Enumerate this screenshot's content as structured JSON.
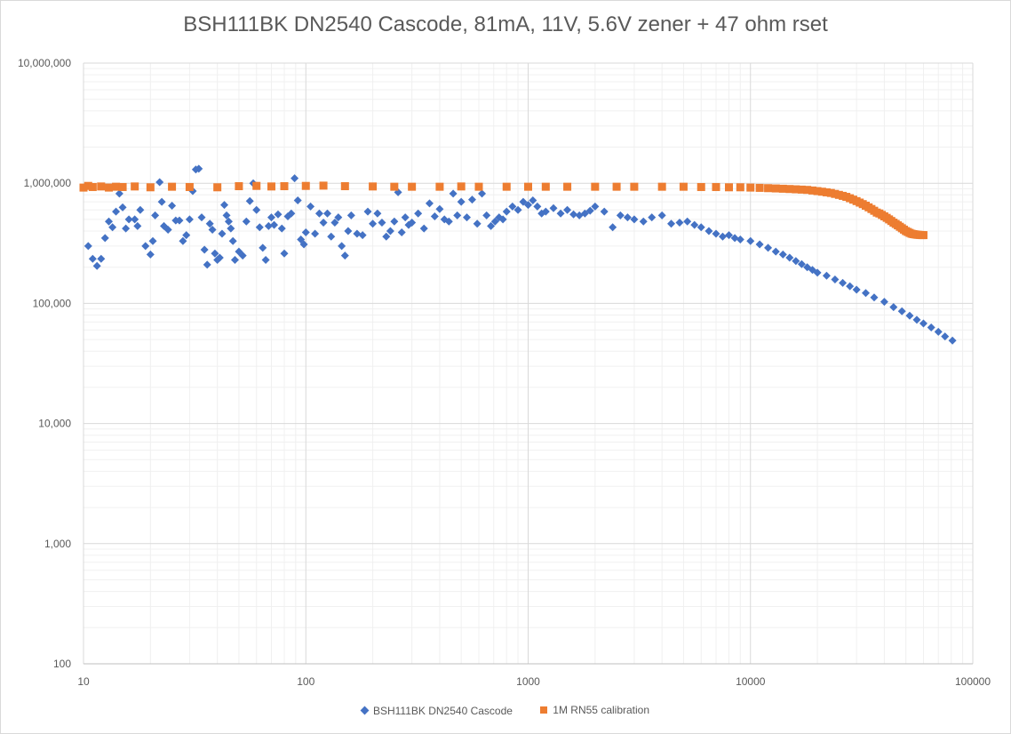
{
  "chart_data": {
    "type": "scatter",
    "title": "BSH111BK DN2540 Cascode, 81mA, 11V, 5.6V zener + 47 ohm rset",
    "xlabel": "",
    "ylabel": "",
    "x_scale": "log",
    "y_scale": "log",
    "xlim": [
      10,
      100000
    ],
    "ylim": [
      100,
      10000000
    ],
    "x_ticks": [
      10,
      100,
      1000,
      10000,
      100000
    ],
    "x_tick_labels": [
      "10",
      "100",
      "1000",
      "10000",
      "100000"
    ],
    "y_ticks": [
      100,
      1000,
      10000,
      100000,
      1000000,
      10000000
    ],
    "y_tick_labels": [
      "100",
      "1,000",
      "10,000",
      "100,000",
      "1,000,000",
      "10,000,000"
    ],
    "grid": true,
    "minor_grid": true,
    "legend_position": "bottom",
    "series": [
      {
        "name": "BSH111BK DN2540 Cascode",
        "color": "#4472c4",
        "marker": "diamond",
        "x": [
          10.5,
          11,
          11.5,
          12,
          12.5,
          13,
          13.5,
          14,
          14.5,
          15,
          15.5,
          16,
          17,
          17.5,
          18,
          19,
          20,
          20.5,
          21,
          22,
          22.5,
          23,
          24,
          25,
          26,
          27,
          28,
          29,
          30,
          31,
          32,
          33,
          34,
          35,
          36,
          37,
          38,
          39,
          40,
          41,
          42,
          43,
          44,
          45,
          46,
          47,
          48,
          50,
          52,
          54,
          56,
          58,
          60,
          62,
          64,
          66,
          68,
          70,
          72,
          75,
          78,
          80,
          83,
          86,
          89,
          92,
          95,
          98,
          100,
          105,
          110,
          115,
          120,
          125,
          130,
          135,
          140,
          145,
          150,
          155,
          160,
          170,
          180,
          190,
          200,
          210,
          220,
          230,
          240,
          250,
          260,
          270,
          280,
          290,
          300,
          320,
          340,
          360,
          380,
          400,
          420,
          440,
          460,
          480,
          500,
          530,
          560,
          590,
          620,
          650,
          680,
          710,
          740,
          770,
          800,
          850,
          900,
          950,
          1000,
          1050,
          1100,
          1150,
          1200,
          1300,
          1400,
          1500,
          1600,
          1700,
          1800,
          1900,
          2000,
          2200,
          2400,
          2600,
          2800,
          3000,
          3300,
          3600,
          4000,
          4400,
          4800,
          5200,
          5600,
          6000,
          6500,
          7000,
          7500,
          8000,
          8500,
          9000,
          10000,
          11000,
          12000,
          13000,
          14000,
          15000,
          16000,
          17000,
          18000,
          19000,
          20000,
          22000,
          24000,
          26000,
          28000,
          30000,
          33000,
          36000,
          40000,
          44000,
          48000,
          52000,
          56000,
          60000,
          65000,
          70000,
          75000,
          81000
        ],
        "y": [
          300000,
          235000,
          205000,
          235000,
          350000,
          480000,
          430000,
          580000,
          820000,
          630000,
          420000,
          500000,
          500000,
          440000,
          600000,
          300000,
          255000,
          330000,
          540000,
          1020000,
          700000,
          440000,
          410000,
          650000,
          490000,
          490000,
          330000,
          370000,
          500000,
          860000,
          1300000,
          1320000,
          520000,
          280000,
          210000,
          460000,
          410000,
          260000,
          230000,
          240000,
          380000,
          660000,
          540000,
          480000,
          420000,
          330000,
          230000,
          270000,
          250000,
          480000,
          710000,
          1000000,
          600000,
          430000,
          290000,
          230000,
          440000,
          520000,
          450000,
          550000,
          420000,
          260000,
          530000,
          560000,
          1100000,
          720000,
          340000,
          310000,
          390000,
          640000,
          380000,
          560000,
          470000,
          560000,
          360000,
          470000,
          520000,
          300000,
          250000,
          400000,
          540000,
          380000,
          370000,
          580000,
          460000,
          560000,
          470000,
          360000,
          400000,
          480000,
          840000,
          390000,
          520000,
          450000,
          470000,
          560000,
          420000,
          680000,
          530000,
          610000,
          500000,
          480000,
          820000,
          540000,
          700000,
          520000,
          730000,
          460000,
          820000,
          540000,
          440000,
          480000,
          520000,
          500000,
          580000,
          640000,
          600000,
          700000,
          660000,
          720000,
          640000,
          560000,
          580000,
          620000,
          560000,
          600000,
          550000,
          540000,
          560000,
          590000,
          640000,
          580000,
          430000,
          540000,
          520000,
          500000,
          480000,
          520000,
          540000,
          460000,
          470000,
          480000,
          450000,
          430000,
          400000,
          380000,
          360000,
          370000,
          350000,
          340000,
          330000,
          310000,
          290000,
          270000,
          255000,
          240000,
          225000,
          212000,
          200000,
          190000,
          180000,
          170000,
          158000,
          148000,
          139000,
          130000,
          122000,
          112000,
          103000,
          93000,
          86000,
          79000,
          73000,
          68000,
          63000,
          58000,
          53000,
          49000
        ]
      },
      {
        "name": "1M RN55 calibration",
        "color": "#ed7d31",
        "marker": "square",
        "x": [
          10,
          10.5,
          11,
          12,
          13,
          14,
          15,
          17,
          20,
          25,
          30,
          40,
          50,
          60,
          70,
          80,
          100,
          120,
          150,
          200,
          250,
          300,
          400,
          500,
          600,
          800,
          1000,
          1200,
          1500,
          2000,
          2500,
          3000,
          4000,
          5000,
          6000,
          7000,
          8000,
          9000,
          10000,
          11000,
          12000,
          13000,
          14000,
          15000,
          16000,
          17000,
          18000,
          19000,
          20000,
          21000,
          22000,
          23000,
          24000,
          25000,
          26000,
          27000,
          28000,
          29000,
          30000,
          31000,
          32000,
          33000,
          34000,
          35000,
          36000,
          37000,
          38000,
          39000,
          40000,
          41000,
          42000,
          43000,
          44000,
          45000,
          46000,
          47000,
          48000,
          49000,
          50000,
          51000,
          52000,
          53000,
          54000,
          55000,
          56000,
          57000,
          58000,
          59000,
          60000
        ],
        "y": [
          920000,
          950000,
          930000,
          940000,
          920000,
          935000,
          930000,
          940000,
          925000,
          935000,
          930000,
          925000,
          945000,
          950000,
          940000,
          945000,
          950000,
          955000,
          945000,
          940000,
          935000,
          935000,
          935000,
          940000,
          935000,
          935000,
          935000,
          935000,
          935000,
          935000,
          935000,
          935000,
          935000,
          935000,
          930000,
          930000,
          925000,
          925000,
          920000,
          915000,
          910000,
          905000,
          900000,
          895000,
          890000,
          885000,
          880000,
          870000,
          860000,
          850000,
          840000,
          830000,
          815000,
          800000,
          785000,
          770000,
          750000,
          730000,
          710000,
          690000,
          670000,
          650000,
          630000,
          610000,
          590000,
          570000,
          560000,
          545000,
          530000,
          515000,
          500000,
          485000,
          470000,
          458000,
          446000,
          434000,
          422000,
          411000,
          400000,
          393000,
          386000,
          380000,
          377000,
          375000,
          373000,
          372000,
          371000,
          370000,
          370000
        ]
      }
    ]
  }
}
